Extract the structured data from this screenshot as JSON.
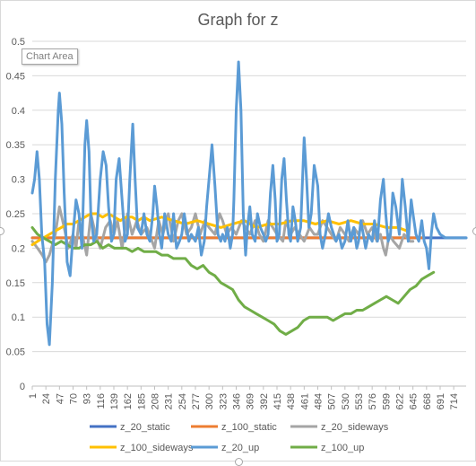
{
  "chart_data": {
    "type": "line",
    "title": "Graph for z",
    "tooltip": "Chart Area",
    "ylim": [
      0,
      0.5
    ],
    "yticks": [
      "0",
      "0.05",
      "0.1",
      "0.15",
      "0.2",
      "0.25",
      "0.3",
      "0.35",
      "0.4",
      "0.45",
      "0.5"
    ],
    "xlim": [
      1,
      735
    ],
    "xticks": [
      "1",
      "24",
      "47",
      "70",
      "93",
      "116",
      "139",
      "162",
      "185",
      "208",
      "231",
      "254",
      "277",
      "300",
      "323",
      "346",
      "369",
      "392",
      "415",
      "438",
      "461",
      "484",
      "507",
      "530",
      "553",
      "576",
      "599",
      "622",
      "645",
      "668",
      "691",
      "714"
    ],
    "grid": true,
    "legend_position": "bottom",
    "series": [
      {
        "name": "z_20_static",
        "color": "#4472C4",
        "x": [
          1,
          735
        ],
        "values": [
          0.215,
          0.215
        ]
      },
      {
        "name": "z_100_static",
        "color": "#ED7D31",
        "x": [
          1,
          660
        ],
        "values": [
          0.215,
          0.215
        ]
      },
      {
        "name": "z_20_sideways",
        "color": "#A5A5A5",
        "x": [
          1,
          10,
          18,
          24,
          30,
          40,
          47,
          55,
          62,
          70,
          75,
          80,
          88,
          93,
          100,
          108,
          116,
          125,
          133,
          139,
          145,
          153,
          162,
          170,
          178,
          185,
          195,
          208,
          215,
          222,
          231,
          240,
          248,
          254,
          262,
          270,
          277,
          285,
          293,
          300,
          310,
          318,
          323,
          330,
          338,
          346,
          355,
          362,
          369,
          378,
          385,
          392,
          400,
          408,
          415,
          425,
          430,
          438,
          445,
          453,
          461,
          470,
          478,
          484,
          492,
          500,
          507,
          515,
          522,
          530,
          537,
          545,
          553,
          560,
          568,
          576,
          584,
          590,
          595,
          599,
          605,
          612,
          622,
          630,
          640,
          645
        ],
        "values": [
          0.21,
          0.2,
          0.19,
          0.18,
          0.19,
          0.22,
          0.26,
          0.23,
          0.2,
          0.22,
          0.2,
          0.24,
          0.21,
          0.19,
          0.25,
          0.22,
          0.2,
          0.23,
          0.24,
          0.22,
          0.24,
          0.2,
          0.25,
          0.22,
          0.24,
          0.22,
          0.23,
          0.2,
          0.24,
          0.22,
          0.25,
          0.21,
          0.24,
          0.25,
          0.22,
          0.23,
          0.25,
          0.22,
          0.24,
          0.23,
          0.22,
          0.25,
          0.24,
          0.22,
          0.23,
          0.22,
          0.24,
          0.23,
          0.22,
          0.24,
          0.22,
          0.21,
          0.24,
          0.23,
          0.22,
          0.21,
          0.24,
          0.22,
          0.23,
          0.22,
          0.21,
          0.23,
          0.22,
          0.22,
          0.24,
          0.23,
          0.22,
          0.21,
          0.23,
          0.22,
          0.21,
          0.23,
          0.22,
          0.24,
          0.22,
          0.23,
          0.21,
          0.22,
          0.2,
          0.19,
          0.22,
          0.21,
          0.2,
          0.22,
          0.21,
          0.21
        ]
      },
      {
        "name": "z_100_sideways",
        "color": "#FFC000",
        "x": [
          1,
          10,
          20,
          30,
          40,
          50,
          60,
          70,
          80,
          90,
          100,
          110,
          120,
          130,
          140,
          150,
          160,
          170,
          180,
          190,
          200,
          220,
          240,
          260,
          280,
          300,
          320,
          340,
          360,
          380,
          400,
          420,
          440,
          460,
          480,
          500,
          520,
          540,
          560,
          580,
          600,
          620,
          635
        ],
        "values": [
          0.205,
          0.21,
          0.215,
          0.22,
          0.225,
          0.23,
          0.235,
          0.235,
          0.24,
          0.245,
          0.25,
          0.25,
          0.245,
          0.25,
          0.245,
          0.24,
          0.245,
          0.245,
          0.24,
          0.245,
          0.24,
          0.245,
          0.24,
          0.235,
          0.24,
          0.235,
          0.23,
          0.235,
          0.24,
          0.23,
          0.235,
          0.235,
          0.24,
          0.24,
          0.235,
          0.24,
          0.235,
          0.24,
          0.235,
          0.235,
          0.23,
          0.23,
          0.225
        ]
      },
      {
        "name": "z_20_up",
        "color": "#5B9BD5",
        "x": [
          1,
          5,
          9,
          13,
          17,
          22,
          26,
          30,
          35,
          40,
          45,
          47,
          51,
          55,
          60,
          65,
          70,
          75,
          80,
          85,
          90,
          93,
          97,
          100,
          105,
          110,
          116,
          121,
          126,
          130,
          135,
          139,
          143,
          148,
          153,
          158,
          162,
          166,
          171,
          175,
          179,
          185,
          190,
          195,
          200,
          205,
          208,
          212,
          216,
          220,
          225,
          231,
          236,
          240,
          245,
          250,
          254,
          258,
          262,
          266,
          270,
          277,
          282,
          287,
          292,
          296,
          300,
          305,
          310,
          315,
          320,
          323,
          327,
          331,
          336,
          340,
          342,
          346,
          350,
          354,
          358,
          362,
          365,
          369,
          373,
          378,
          382,
          387,
          392,
          396,
          400,
          404,
          408,
          412,
          415,
          419,
          423,
          427,
          431,
          435,
          438,
          442,
          446,
          450,
          455,
          461,
          465,
          469,
          473,
          478,
          484,
          488,
          492,
          497,
          502,
          507,
          511,
          515,
          520,
          525,
          530,
          535,
          540,
          545,
          550,
          553,
          557,
          561,
          565,
          570,
          576,
          580,
          585,
          590,
          595,
          599,
          603,
          607,
          611,
          616,
          622,
          627,
          632,
          637,
          642,
          645,
          650,
          655,
          660,
          664,
          668,
          672,
          676,
          680,
          685,
          691,
          700,
          714,
          735
        ],
        "values": [
          0.28,
          0.3,
          0.34,
          0.3,
          0.22,
          0.18,
          0.09,
          0.06,
          0.15,
          0.3,
          0.4,
          0.425,
          0.38,
          0.28,
          0.18,
          0.16,
          0.22,
          0.27,
          0.25,
          0.2,
          0.35,
          0.385,
          0.34,
          0.25,
          0.21,
          0.22,
          0.3,
          0.34,
          0.32,
          0.26,
          0.21,
          0.22,
          0.3,
          0.33,
          0.27,
          0.21,
          0.22,
          0.3,
          0.38,
          0.3,
          0.23,
          0.22,
          0.25,
          0.22,
          0.21,
          0.25,
          0.29,
          0.26,
          0.22,
          0.2,
          0.25,
          0.22,
          0.21,
          0.25,
          0.2,
          0.21,
          0.22,
          0.25,
          0.23,
          0.21,
          0.22,
          0.21,
          0.23,
          0.19,
          0.21,
          0.26,
          0.3,
          0.35,
          0.29,
          0.22,
          0.21,
          0.22,
          0.21,
          0.23,
          0.2,
          0.22,
          0.27,
          0.4,
          0.47,
          0.4,
          0.25,
          0.19,
          0.23,
          0.26,
          0.22,
          0.21,
          0.25,
          0.23,
          0.22,
          0.21,
          0.22,
          0.28,
          0.32,
          0.27,
          0.21,
          0.22,
          0.3,
          0.33,
          0.27,
          0.22,
          0.21,
          0.26,
          0.24,
          0.21,
          0.23,
          0.36,
          0.3,
          0.23,
          0.25,
          0.32,
          0.29,
          0.22,
          0.2,
          0.22,
          0.25,
          0.23,
          0.22,
          0.21,
          0.22,
          0.2,
          0.21,
          0.24,
          0.21,
          0.23,
          0.2,
          0.21,
          0.24,
          0.22,
          0.2,
          0.22,
          0.21,
          0.24,
          0.21,
          0.27,
          0.3,
          0.25,
          0.21,
          0.22,
          0.28,
          0.26,
          0.22,
          0.3,
          0.26,
          0.21,
          0.27,
          0.25,
          0.22,
          0.21,
          0.24,
          0.21,
          0.2,
          0.17,
          0.22,
          0.25,
          0.23,
          0.22,
          0.215,
          0.215,
          0.215
        ]
      },
      {
        "name": "z_100_up",
        "color": "#70AD47",
        "x": [
          1,
          10,
          20,
          30,
          40,
          50,
          60,
          70,
          80,
          90,
          100,
          110,
          120,
          130,
          140,
          150,
          160,
          170,
          180,
          190,
          200,
          210,
          220,
          230,
          240,
          250,
          260,
          270,
          280,
          290,
          300,
          310,
          320,
          330,
          340,
          350,
          360,
          370,
          380,
          390,
          400,
          410,
          420,
          430,
          440,
          450,
          460,
          470,
          480,
          490,
          500,
          510,
          520,
          530,
          540,
          550,
          560,
          570,
          580,
          590,
          600,
          610,
          620,
          630,
          640,
          650,
          660,
          670,
          680
        ],
        "values": [
          0.23,
          0.22,
          0.215,
          0.21,
          0.205,
          0.21,
          0.205,
          0.2,
          0.2,
          0.205,
          0.205,
          0.21,
          0.2,
          0.205,
          0.2,
          0.2,
          0.2,
          0.195,
          0.2,
          0.195,
          0.195,
          0.195,
          0.19,
          0.19,
          0.185,
          0.185,
          0.185,
          0.175,
          0.17,
          0.175,
          0.165,
          0.16,
          0.15,
          0.145,
          0.14,
          0.125,
          0.115,
          0.11,
          0.105,
          0.1,
          0.095,
          0.09,
          0.08,
          0.075,
          0.08,
          0.085,
          0.095,
          0.1,
          0.1,
          0.1,
          0.1,
          0.095,
          0.1,
          0.105,
          0.105,
          0.11,
          0.11,
          0.115,
          0.12,
          0.125,
          0.13,
          0.125,
          0.12,
          0.13,
          0.14,
          0.145,
          0.155,
          0.16,
          0.165
        ]
      }
    ]
  }
}
